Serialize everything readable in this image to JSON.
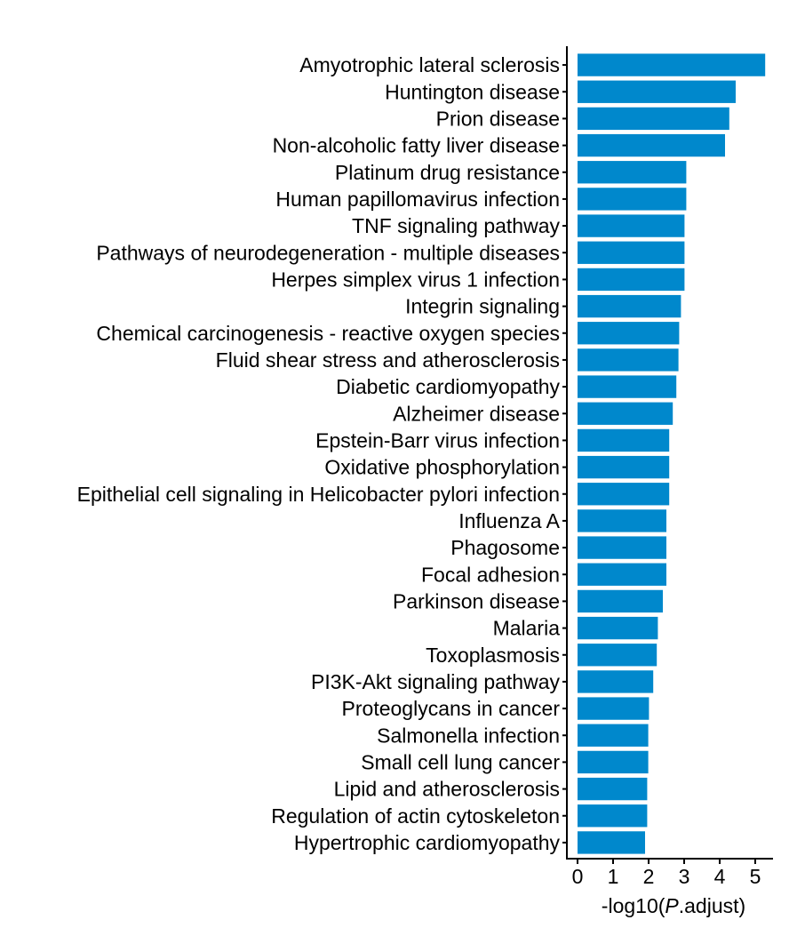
{
  "chart_data": {
    "type": "bar",
    "orientation": "horizontal",
    "title": "",
    "xlabel_prefix": "-log10(",
    "xlabel_italic": "P",
    "xlabel_suffix": ".adjust)",
    "ylabel": "",
    "xlim": [
      -0.3,
      5.5
    ],
    "xticks": [
      0,
      1,
      2,
      3,
      4,
      5
    ],
    "bar_color": "#0088CC",
    "grid": false,
    "categories": [
      "Amyotrophic lateral sclerosis",
      "Huntington disease",
      "Prion disease",
      "Non-alcoholic fatty liver disease",
      "Platinum drug resistance",
      "Human papillomavirus infection",
      "TNF signaling pathway",
      "Pathways of neurodegeneration - multiple diseases",
      "Herpes simplex virus 1 infection",
      "Integrin signaling",
      "Chemical carcinogenesis - reactive oxygen species",
      "Fluid shear stress and atherosclerosis",
      "Diabetic cardiomyopathy",
      "Alzheimer disease",
      "Epstein-Barr virus infection",
      "Oxidative phosphorylation",
      "Epithelial cell signaling in Helicobacter pylori infection",
      "Influenza A",
      "Phagosome",
      "Focal adhesion",
      "Parkinson disease",
      "Malaria",
      "Toxoplasmosis",
      "PI3K-Akt signaling pathway",
      "Proteoglycans in cancer",
      "Salmonella infection",
      "Small cell lung cancer",
      "Lipid and atherosclerosis",
      "Regulation of actin cytoskeleton",
      "Hypertrophic cardiomyopathy"
    ],
    "values": [
      5.28,
      4.45,
      4.27,
      4.15,
      3.06,
      3.06,
      3.01,
      3.01,
      3.01,
      2.91,
      2.86,
      2.84,
      2.78,
      2.68,
      2.58,
      2.58,
      2.58,
      2.5,
      2.5,
      2.5,
      2.4,
      2.26,
      2.23,
      2.13,
      2.01,
      1.99,
      1.99,
      1.96,
      1.96,
      1.9
    ]
  }
}
